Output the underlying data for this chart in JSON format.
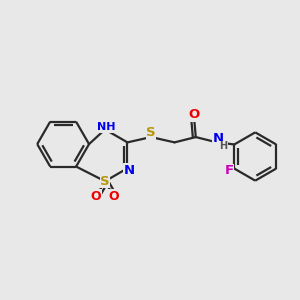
{
  "background_color": "#e8e8e8",
  "bond_color": "#2a2a2a",
  "bond_lw": 1.6,
  "atom_colors": {
    "S": "#b8960a",
    "N": "#0000ee",
    "O": "#ee0000",
    "F": "#cc00bb",
    "H": "#555555",
    "C": "#2a2a2a"
  },
  "font_size": 9.0,
  "figsize": [
    3.0,
    3.0
  ],
  "dpi": 100
}
